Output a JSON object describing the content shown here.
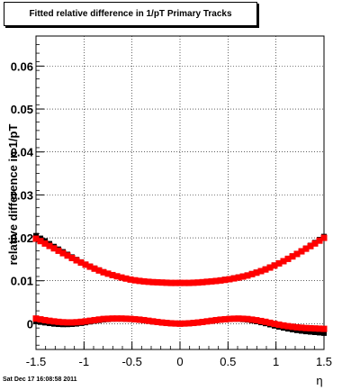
{
  "chart_data": {
    "type": "scatter",
    "title": "Fitted relative difference in 1/pT  Primary Tracks",
    "xlabel": "η",
    "ylabel": "relative difference in 1/pT",
    "xlim": [
      -1.5,
      1.5
    ],
    "ylim": [
      -0.006,
      0.067
    ],
    "x_ticks": [
      "-1.5",
      "-1",
      "-0.5",
      "0",
      "0.5",
      "1",
      "1.5"
    ],
    "x_tick_values": [
      -1.5,
      -1,
      -0.5,
      0,
      0.5,
      1,
      1.5
    ],
    "y_ticks": [
      "0",
      "0.01",
      "0.02",
      "0.03",
      "0.04",
      "0.05",
      "0.06"
    ],
    "y_tick_values": [
      0,
      0.01,
      0.02,
      0.03,
      0.04,
      0.05,
      0.06
    ],
    "grid": true,
    "colors": {
      "series_black": "#000000",
      "series_red": "#ff0000"
    },
    "series": [
      {
        "color": "#000000",
        "x": [
          -1.5,
          -1.4,
          -1.3,
          -1.2,
          -1.1,
          -1.0,
          -0.9,
          -0.8,
          -0.7,
          -0.6,
          -0.5,
          -0.4,
          -0.3,
          -0.2,
          -0.1,
          0.0,
          0.1,
          0.2,
          0.3,
          0.4,
          0.5,
          0.6,
          0.7,
          0.8,
          0.9,
          1.0,
          1.1,
          1.2,
          1.3,
          1.4,
          1.5
        ],
        "y": [
          0.0205,
          0.0192,
          0.0178,
          0.0165,
          0.0152,
          0.014,
          0.013,
          0.0121,
          0.0113,
          0.0107,
          0.0102,
          0.0099,
          0.0097,
          0.0096,
          0.0095,
          0.0095,
          0.0095,
          0.0096,
          0.0098,
          0.0101,
          0.0104,
          0.0108,
          0.0113,
          0.012,
          0.0128,
          0.0138,
          0.0149,
          0.0161,
          0.0174,
          0.0188,
          0.0203
        ]
      },
      {
        "color": "#ff0000",
        "x": [
          -1.5,
          -1.4,
          -1.3,
          -1.2,
          -1.1,
          -1.0,
          -0.9,
          -0.8,
          -0.7,
          -0.6,
          -0.5,
          -0.4,
          -0.3,
          -0.2,
          -0.1,
          0.0,
          0.1,
          0.2,
          0.3,
          0.4,
          0.5,
          0.6,
          0.7,
          0.8,
          0.9,
          1.0,
          1.1,
          1.2,
          1.3,
          1.4,
          1.5
        ],
        "y": [
          0.0198,
          0.0186,
          0.0174,
          0.0162,
          0.015,
          0.0139,
          0.0129,
          0.012,
          0.0113,
          0.0107,
          0.0102,
          0.0099,
          0.0097,
          0.0096,
          0.0095,
          0.0095,
          0.0095,
          0.0096,
          0.0098,
          0.01,
          0.0103,
          0.0107,
          0.0112,
          0.0119,
          0.0127,
          0.0137,
          0.0148,
          0.016,
          0.0173,
          0.0186,
          0.02
        ]
      },
      {
        "color": "#000000",
        "x": [
          -1.5,
          -1.4,
          -1.3,
          -1.2,
          -1.1,
          -1.0,
          -0.9,
          -0.8,
          -0.7,
          -0.6,
          -0.5,
          -0.4,
          -0.3,
          -0.2,
          -0.1,
          0.0,
          0.1,
          0.2,
          0.3,
          0.4,
          0.5,
          0.6,
          0.7,
          0.8,
          0.9,
          1.0,
          1.1,
          1.2,
          1.3,
          1.4,
          1.5
        ],
        "y": [
          0.0005,
          0.0002,
          -0.0001,
          -0.0002,
          -0.0001,
          0.0002,
          0.0006,
          0.0009,
          0.0011,
          0.0011,
          0.001,
          0.0008,
          0.0005,
          0.0002,
          0.0001,
          0.0,
          0.0001,
          0.0003,
          0.0006,
          0.0009,
          0.0011,
          0.0011,
          0.0009,
          0.0005,
          0.0,
          -0.0006,
          -0.0011,
          -0.0015,
          -0.0018,
          -0.002,
          -0.0022
        ]
      },
      {
        "color": "#ff0000",
        "x": [
          -1.5,
          -1.4,
          -1.3,
          -1.2,
          -1.1,
          -1.0,
          -0.9,
          -0.8,
          -0.7,
          -0.6,
          -0.5,
          -0.4,
          -0.3,
          -0.2,
          -0.1,
          0.0,
          0.1,
          0.2,
          0.3,
          0.4,
          0.5,
          0.6,
          0.7,
          0.8,
          0.9,
          1.0,
          1.1,
          1.2,
          1.3,
          1.4,
          1.5
        ],
        "y": [
          0.0012,
          0.0008,
          0.0005,
          0.0003,
          0.0003,
          0.0005,
          0.0008,
          0.0011,
          0.0012,
          0.0012,
          0.0011,
          0.0009,
          0.0006,
          0.0003,
          0.0001,
          0.0,
          0.0001,
          0.0003,
          0.0006,
          0.0009,
          0.0011,
          0.0012,
          0.0011,
          0.0008,
          0.0004,
          -0.0001,
          -0.0005,
          -0.0008,
          -0.001,
          -0.0011,
          -0.0012
        ]
      }
    ]
  },
  "footer": {
    "timestamp": "Sat Dec 17 16:08:58 2011"
  }
}
